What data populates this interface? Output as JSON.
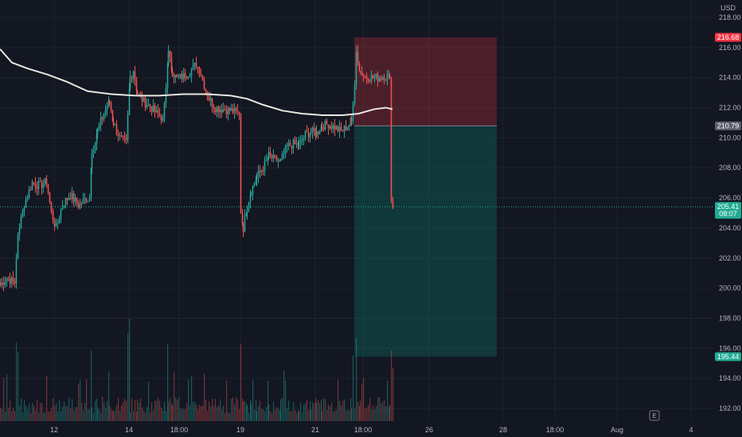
{
  "chart_data": {
    "type": "candlestick",
    "currency": "USD",
    "y_ticks": [
      218,
      216,
      214,
      212,
      210,
      208,
      206,
      204,
      202,
      200,
      198,
      196,
      194,
      192
    ],
    "y_range": [
      191.2,
      219.2
    ],
    "x_ticks": [
      {
        "label": "12",
        "bar": 68
      },
      {
        "label": "14",
        "bar": 162
      },
      {
        "label": "18:00",
        "bar": 225
      },
      {
        "label": "19",
        "bar": 302
      },
      {
        "label": "21",
        "bar": 396
      },
      {
        "label": "18:00",
        "bar": 456
      },
      {
        "label": "26",
        "bar": 539
      },
      {
        "label": "28",
        "bar": 632
      },
      {
        "label": "18:00",
        "bar": 697
      },
      {
        "label": "Aug",
        "bar": 775
      },
      {
        "label": "4",
        "bar": 868
      }
    ],
    "price_tags": {
      "stop_loss": "216.68",
      "entry": "210.79",
      "last_price": "205.41",
      "countdown": "08:07",
      "take_profit": "195.44"
    },
    "position": {
      "entry": 210.79,
      "stop": 216.68,
      "target": 195.44,
      "start_bar": 445,
      "end_bar": 624
    },
    "last_price": 205.41,
    "earnings_marker": "E",
    "moving_average": [
      [
        0,
        215.9
      ],
      [
        15,
        215.0
      ],
      [
        35,
        214.6
      ],
      [
        60,
        214.2
      ],
      [
        85,
        213.7
      ],
      [
        110,
        213.1
      ],
      [
        140,
        212.9
      ],
      [
        170,
        212.8
      ],
      [
        200,
        212.8
      ],
      [
        230,
        212.9
      ],
      [
        260,
        212.9
      ],
      [
        290,
        212.8
      ],
      [
        310,
        212.6
      ],
      [
        330,
        212.2
      ],
      [
        355,
        211.8
      ],
      [
        380,
        211.6
      ],
      [
        405,
        211.5
      ],
      [
        430,
        211.5
      ],
      [
        450,
        211.6
      ],
      [
        470,
        211.9
      ],
      [
        485,
        212.0
      ],
      [
        493,
        211.9
      ]
    ],
    "candle_anchors": [
      [
        0,
        200.2
      ],
      [
        8,
        200.7
      ],
      [
        18,
        200.3
      ],
      [
        22,
        203.6
      ],
      [
        30,
        205.6
      ],
      [
        40,
        207.0
      ],
      [
        50,
        206.8
      ],
      [
        58,
        207.1
      ],
      [
        64,
        205.0
      ],
      [
        70,
        204.0
      ],
      [
        78,
        205.6
      ],
      [
        88,
        206.2
      ],
      [
        98,
        205.5
      ],
      [
        106,
        205.9
      ],
      [
        112,
        206.0
      ],
      [
        115,
        209.0
      ],
      [
        122,
        210.5
      ],
      [
        130,
        211.6
      ],
      [
        137,
        212.4
      ],
      [
        142,
        211.0
      ],
      [
        150,
        210.0
      ],
      [
        158,
        209.6
      ],
      [
        163,
        214.0
      ],
      [
        167,
        214.5
      ],
      [
        172,
        213.0
      ],
      [
        180,
        212.4
      ],
      [
        188,
        212.1
      ],
      [
        196,
        211.6
      ],
      [
        204,
        211.3
      ],
      [
        208,
        213.3
      ],
      [
        211,
        215.6
      ],
      [
        216,
        214.4
      ],
      [
        222,
        213.9
      ],
      [
        230,
        214.1
      ],
      [
        238,
        214.4
      ],
      [
        246,
        214.9
      ],
      [
        252,
        214.2
      ],
      [
        256,
        213.5
      ],
      [
        262,
        212.6
      ],
      [
        270,
        212.0
      ],
      [
        280,
        211.9
      ],
      [
        290,
        211.8
      ],
      [
        300,
        211.6
      ],
      [
        302,
        205.1
      ],
      [
        305,
        204.0
      ],
      [
        310,
        205.5
      ],
      [
        315,
        206.5
      ],
      [
        322,
        207.4
      ],
      [
        330,
        208.0
      ],
      [
        337,
        208.8
      ],
      [
        345,
        208.5
      ],
      [
        352,
        208.4
      ],
      [
        360,
        209.4
      ],
      [
        368,
        209.6
      ],
      [
        375,
        209.5
      ],
      [
        383,
        210.2
      ],
      [
        390,
        210.4
      ],
      [
        397,
        210.3
      ],
      [
        404,
        210.8
      ],
      [
        412,
        210.9
      ],
      [
        420,
        210.7
      ],
      [
        428,
        210.4
      ],
      [
        436,
        210.8
      ],
      [
        441,
        211.1
      ],
      [
        445,
        213.5
      ],
      [
        447,
        215.7
      ],
      [
        452,
        214.4
      ],
      [
        458,
        214.1
      ],
      [
        466,
        214.0
      ],
      [
        474,
        214.0
      ],
      [
        482,
        214.1
      ],
      [
        489,
        214.0
      ],
      [
        491,
        206.1
      ],
      [
        493,
        205.4
      ]
    ],
    "volume_max": 3.2
  }
}
